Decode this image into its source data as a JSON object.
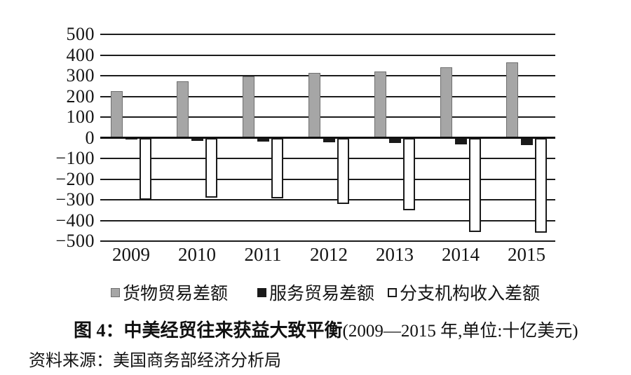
{
  "chart_data": {
    "type": "bar",
    "title": "图 4：中美经贸往来获益大致平衡(2009—2015 年,单位:十亿美元)",
    "unit": "十亿美元",
    "categories": [
      "2009",
      "2010",
      "2011",
      "2012",
      "2013",
      "2014",
      "2015"
    ],
    "series": [
      {
        "id": "goods",
        "name": "货物贸易差额",
        "color": "#a6a6a6",
        "values": [
          226,
          273,
          296,
          315,
          322,
          340,
          365
        ]
      },
      {
        "id": "services",
        "name": "服务贸易差额",
        "color": "#1a1a1a",
        "values": [
          -10,
          -14,
          -19,
          -23,
          -27,
          -31,
          -35
        ]
      },
      {
        "id": "affiliate",
        "name": "分支机构收入差额",
        "color": "#ffffff",
        "values": [
          -300,
          -290,
          -294,
          -320,
          -350,
          -455,
          -460
        ]
      }
    ],
    "xlabel": "",
    "ylabel": "",
    "ylim": [
      -500,
      500
    ],
    "ytick_step": 100,
    "grid": true,
    "legend_position": "bottom"
  },
  "caption": {
    "bold": "图 4：中美经贸往来获益大致平衡",
    "rest": "(2009—2015 年,单位:十亿美元)"
  },
  "source": "资料来源：美国商务部经济分析局",
  "colors": {
    "goods_bar": "#a6a6a6",
    "services_bar": "#1a1a1a",
    "affiliate_bar": "#ffffff",
    "axis": "#1c1c1c",
    "background": "#ffffff"
  }
}
